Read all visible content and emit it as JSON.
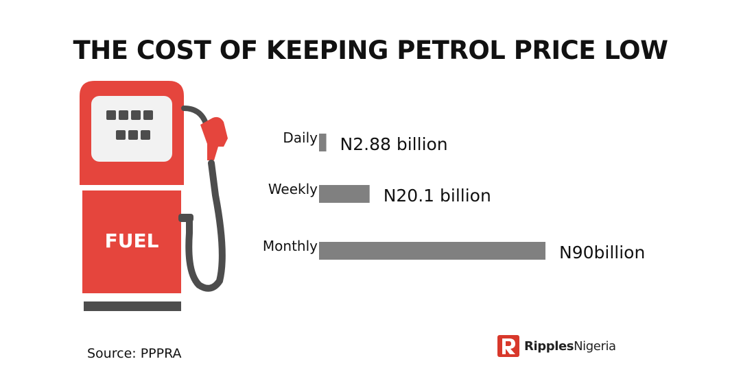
{
  "title": "THE COST OF KEEPING PETROL PRICE LOW",
  "pump": {
    "label": "FUEL",
    "colors": {
      "body": "#e5453d",
      "dark": "#4d4d4d",
      "screen": "#f2f2f2"
    }
  },
  "chart_data": {
    "type": "bar",
    "orientation": "horizontal",
    "categories": [
      "Daily",
      "Weekly",
      "Monthly"
    ],
    "values": [
      2.88,
      20.1,
      90
    ],
    "value_labels": [
      "N2.88 billion",
      "N20.1 billion",
      "N90billion"
    ],
    "bar_color": "#808080",
    "axes": "hidden",
    "grid": false
  },
  "source": "Source: PPPRA",
  "brand": {
    "part1": "Ripples",
    "part2": "Nigeria",
    "accent": "#d8382b"
  }
}
